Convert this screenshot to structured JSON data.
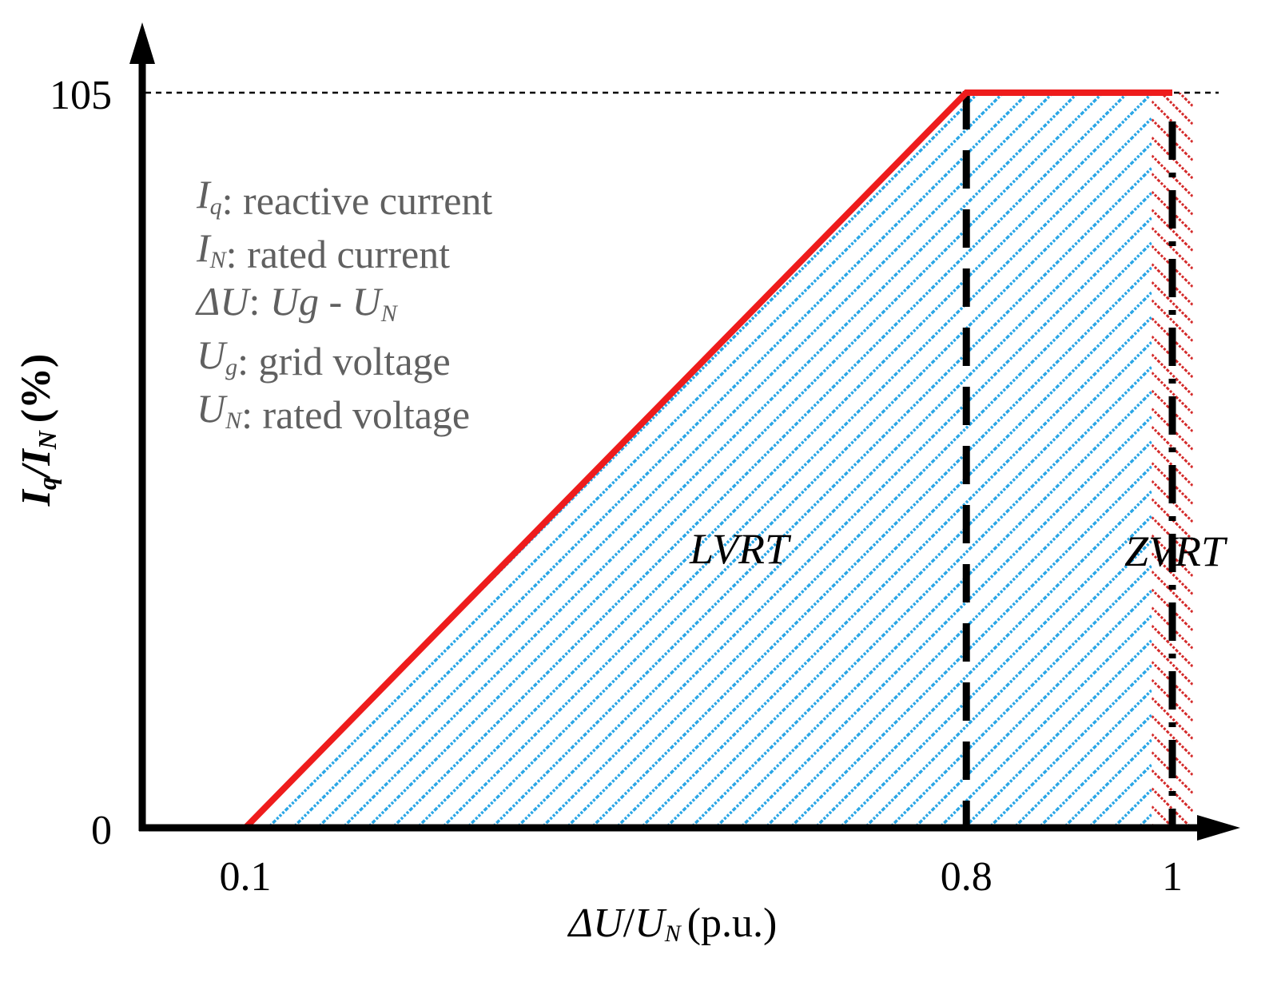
{
  "chart_data": {
    "type": "area",
    "x_axis": {
      "label_delta_u": "ΔU",
      "label_slash": "/",
      "label_u": "U",
      "label_sub_n": "N",
      "label_unit": "(p.u.)",
      "ticks": [
        "0.1",
        "0.8",
        "1"
      ],
      "tick_values": [
        0.1,
        0.8,
        1.0
      ]
    },
    "y_axis": {
      "label_i": "I",
      "label_sub_q": "q",
      "label_slash": "/I",
      "label_sub_n": "N",
      "label_unit": "(%)",
      "ticks": [
        "0",
        "105"
      ],
      "tick_values": [
        0,
        105
      ]
    },
    "series": [
      {
        "x": [
          0.1,
          0.8,
          1.0
        ],
        "y": [
          0,
          105,
          105
        ]
      }
    ],
    "reference_lines": {
      "horizontal_y": 105,
      "vertical_x": [
        0.8,
        1.0
      ]
    },
    "regions": [
      {
        "label": "LVRT",
        "x_range": [
          0.1,
          1.0
        ],
        "color": "#2aa6e6"
      },
      {
        "label": "ZVRT",
        "x_range": [
          0.98,
          1.02
        ],
        "color": "#e02020"
      }
    ],
    "legend": {
      "placement": "top-left",
      "items": [
        {
          "sym": "I",
          "sub": "q",
          "text": ": reactive current"
        },
        {
          "sym": "I",
          "sub": "N",
          "text": ": rated current"
        },
        {
          "sym": "ΔU",
          "sub": "",
          "text": ": ",
          "sym2": "Ug",
          "mid": " - ",
          "sym3": "U",
          "sub3": "N"
        },
        {
          "sym": "U",
          "sub": "g",
          "text": ": grid voltage"
        },
        {
          "sym": "U",
          "sub": "N",
          "text": ": rated voltage"
        }
      ]
    },
    "colors": {
      "line": "#ee1c1c",
      "lvrt_hatch": "#2aa6e6",
      "zvrt_hatch": "#d42a2a",
      "axis": "#000000",
      "legend_text": "#606060"
    },
    "grid": false
  }
}
